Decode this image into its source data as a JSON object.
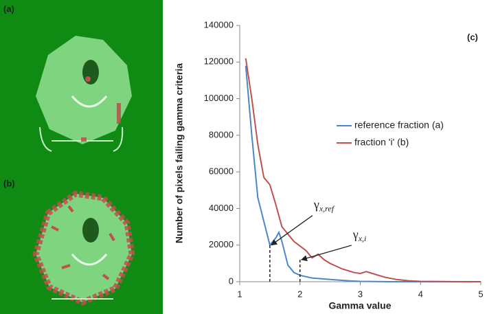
{
  "panels": [
    "(a)",
    "(b)"
  ],
  "chart_data": {
    "type": "line",
    "panel_label": "(c)",
    "xlabel": "Gamma value",
    "ylabel": "Number of pixels failing gamma criteria",
    "xlim": [
      1,
      5
    ],
    "xticks": [
      1,
      2,
      3,
      4,
      5
    ],
    "ylim": [
      0,
      140000
    ],
    "yticks": [
      0,
      20000,
      40000,
      60000,
      80000,
      100000,
      120000,
      140000
    ],
    "legend": "right",
    "series": [
      {
        "name": "reference fraction (a)",
        "color": "#4a86c8",
        "x": [
          1.1,
          1.2,
          1.3,
          1.4,
          1.5,
          1.6,
          1.65,
          1.7,
          1.8,
          1.9,
          2.0,
          2.2,
          2.4,
          2.6,
          2.8,
          3.0,
          3.5,
          4.0,
          5.0
        ],
        "values": [
          118000,
          80000,
          46000,
          33000,
          20000,
          24000,
          27000,
          22000,
          9000,
          5000,
          3500,
          2000,
          1500,
          1000,
          500,
          200,
          0,
          0,
          0
        ]
      },
      {
        "name": "fraction 'i' (b)",
        "color": "#c0504d",
        "x": [
          1.1,
          1.2,
          1.3,
          1.4,
          1.5,
          1.6,
          1.7,
          1.8,
          1.9,
          2.0,
          2.1,
          2.2,
          2.3,
          2.4,
          2.5,
          2.6,
          2.7,
          2.8,
          2.9,
          3.0,
          3.1,
          3.2,
          3.4,
          3.6,
          3.8,
          4.0,
          4.5,
          5.0
        ],
        "values": [
          122000,
          100000,
          75000,
          57000,
          53000,
          42000,
          30000,
          26000,
          22000,
          19500,
          17000,
          13000,
          15000,
          12000,
          10000,
          8500,
          7000,
          6000,
          5000,
          4500,
          5500,
          4500,
          2500,
          1200,
          500,
          200,
          50,
          0
        ]
      }
    ],
    "annotations": [
      {
        "text": "γ",
        "subscript": "x,ref",
        "x": 1.5,
        "y": 20000
      },
      {
        "text": "γ",
        "subscript": "x,i",
        "x": 2.0,
        "y": 12000
      }
    ]
  }
}
